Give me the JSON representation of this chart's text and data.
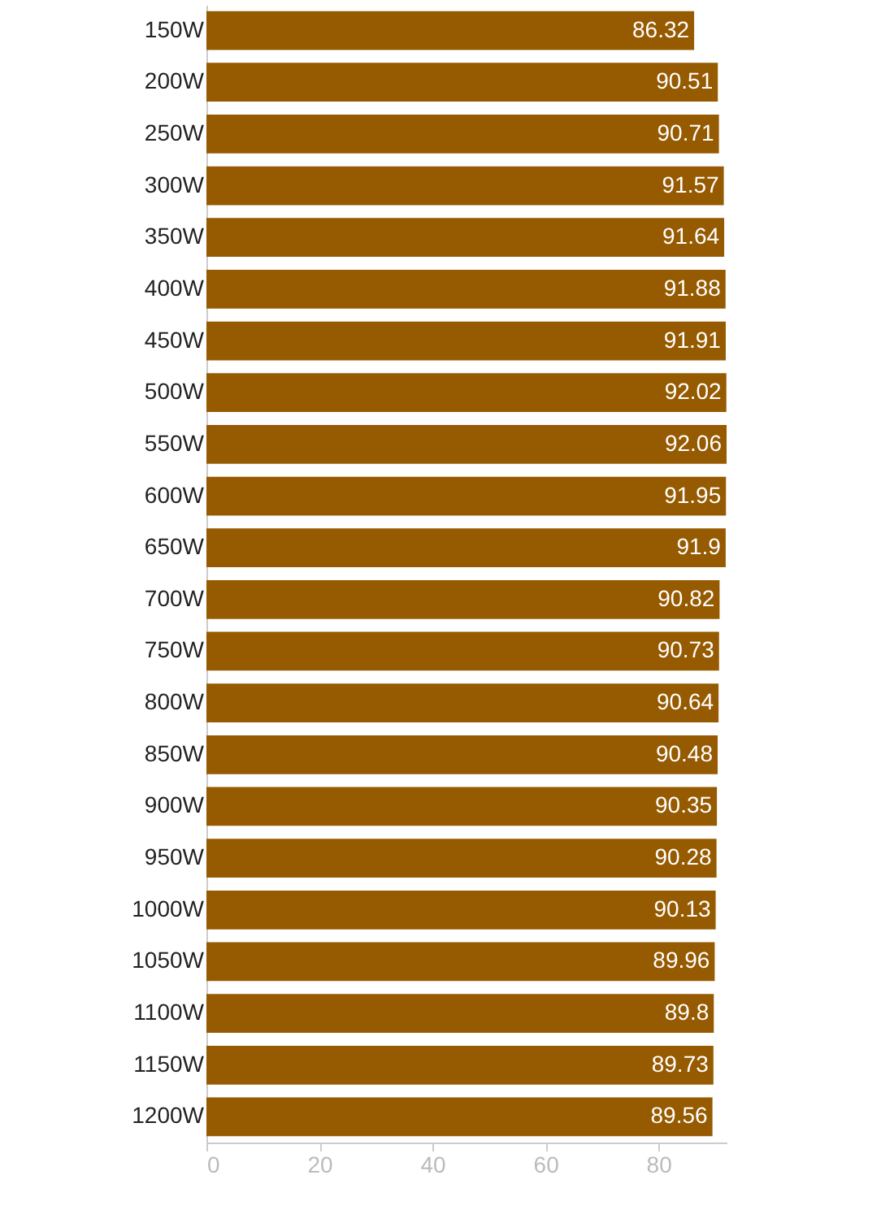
{
  "chart_data": {
    "type": "bar",
    "orientation": "horizontal",
    "categories": [
      "150W",
      "200W",
      "250W",
      "300W",
      "350W",
      "400W",
      "450W",
      "500W",
      "550W",
      "600W",
      "650W",
      "700W",
      "750W",
      "800W",
      "850W",
      "900W",
      "950W",
      "1000W",
      "1050W",
      "1100W",
      "1150W",
      "1200W"
    ],
    "values": [
      86.32,
      90.51,
      90.71,
      91.57,
      91.64,
      91.88,
      91.91,
      92.02,
      92.06,
      91.95,
      91.9,
      90.82,
      90.73,
      90.64,
      90.48,
      90.35,
      90.28,
      90.13,
      89.96,
      89.8,
      89.73,
      89.56
    ],
    "color": "#965a00",
    "xlim": [
      0,
      92.06
    ],
    "xticks": [
      0,
      20,
      40,
      60,
      80
    ],
    "data_labels": true
  }
}
